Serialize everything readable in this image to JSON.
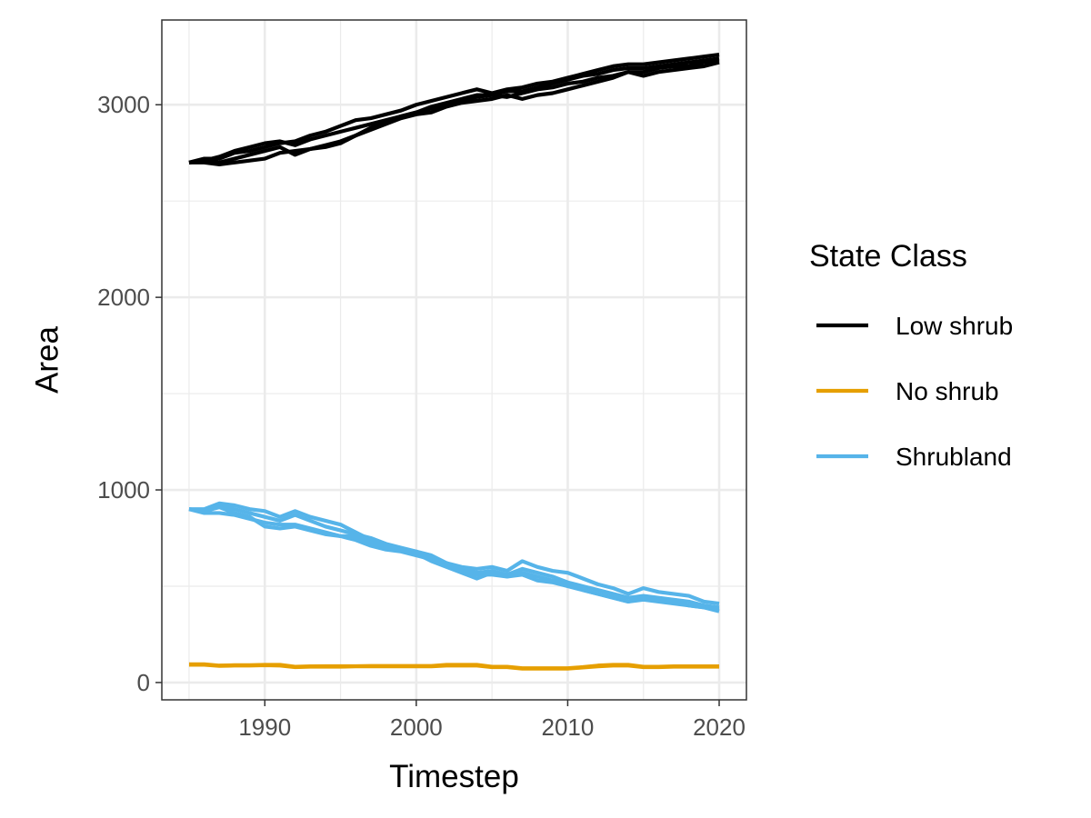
{
  "chart_data": {
    "type": "line",
    "title": "",
    "xlabel": "Timestep",
    "ylabel": "Area",
    "xlim": [
      1983.2,
      2021.8
    ],
    "ylim": [
      -90,
      3440
    ],
    "x_ticks": [
      1990,
      2000,
      2010,
      2020
    ],
    "y_ticks": [
      0,
      1000,
      2000,
      3000
    ],
    "grid": true,
    "legend_title": "State Class",
    "legend_position": "right",
    "x": [
      1985,
      1986,
      1987,
      1988,
      1989,
      1990,
      1991,
      1992,
      1993,
      1994,
      1995,
      1996,
      1997,
      1998,
      1999,
      2000,
      2001,
      2002,
      2003,
      2004,
      2005,
      2006,
      2007,
      2008,
      2009,
      2010,
      2011,
      2012,
      2013,
      2014,
      2015,
      2016,
      2017,
      2018,
      2019,
      2020
    ],
    "series": [
      {
        "name": "Low shrub",
        "state_class": "Low shrub",
        "color": "#000000",
        "values": [
          2700,
          2710,
          2730,
          2760,
          2780,
          2800,
          2810,
          2790,
          2820,
          2840,
          2860,
          2880,
          2900,
          2920,
          2940,
          2960,
          2990,
          3010,
          3030,
          3050,
          3050,
          3070,
          3070,
          3090,
          3110,
          3130,
          3150,
          3160,
          3180,
          3190,
          3190,
          3200,
          3210,
          3220,
          3230,
          3240
        ]
      },
      {
        "name": "Low shrub",
        "state_class": "Low shrub",
        "color": "#000000",
        "values": [
          2700,
          2700,
          2690,
          2700,
          2710,
          2720,
          2750,
          2760,
          2770,
          2790,
          2810,
          2840,
          2870,
          2900,
          2930,
          2950,
          2960,
          2990,
          3010,
          3020,
          3030,
          3050,
          3030,
          3050,
          3060,
          3080,
          3100,
          3120,
          3140,
          3170,
          3150,
          3170,
          3180,
          3190,
          3200,
          3220
        ]
      },
      {
        "name": "Low shrub",
        "state_class": "Low shrub",
        "color": "#000000",
        "values": [
          2700,
          2720,
          2720,
          2750,
          2760,
          2780,
          2800,
          2810,
          2840,
          2860,
          2890,
          2920,
          2930,
          2950,
          2970,
          3000,
          3020,
          3040,
          3060,
          3080,
          3060,
          3080,
          3090,
          3110,
          3120,
          3140,
          3160,
          3180,
          3200,
          3210,
          3210,
          3220,
          3230,
          3240,
          3250,
          3260
        ]
      },
      {
        "name": "Low shrub",
        "state_class": "Low shrub",
        "color": "#000000",
        "values": [
          2700,
          2710,
          2700,
          2720,
          2740,
          2760,
          2780,
          2740,
          2770,
          2780,
          2800,
          2840,
          2880,
          2910,
          2940,
          2960,
          2980,
          3000,
          3020,
          3040,
          3050,
          3040,
          3060,
          3080,
          3090,
          3110,
          3120,
          3140,
          3150,
          3170,
          3170,
          3190,
          3200,
          3200,
          3220,
          3230
        ]
      },
      {
        "name": "Shrubland",
        "state_class": "Shrubland",
        "color": "#56B4E9",
        "values": [
          900,
          890,
          920,
          900,
          880,
          860,
          840,
          870,
          840,
          810,
          790,
          770,
          750,
          720,
          700,
          680,
          650,
          620,
          590,
          570,
          580,
          560,
          590,
          570,
          550,
          520,
          500,
          480,
          460,
          440,
          450,
          440,
          430,
          420,
          400,
          390
        ]
      },
      {
        "name": "Shrubland",
        "state_class": "Shrubland",
        "color": "#56B4E9",
        "values": [
          900,
          880,
          880,
          870,
          850,
          830,
          820,
          820,
          800,
          780,
          760,
          740,
          710,
          690,
          680,
          660,
          640,
          620,
          600,
          590,
          600,
          580,
          630,
          600,
          580,
          570,
          540,
          510,
          490,
          460,
          490,
          470,
          460,
          450,
          420,
          410
        ]
      },
      {
        "name": "Shrubland",
        "state_class": "Shrubland",
        "color": "#56B4E9",
        "values": [
          900,
          900,
          930,
          920,
          900,
          890,
          860,
          890,
          860,
          840,
          820,
          780,
          740,
          710,
          690,
          680,
          660,
          620,
          580,
          560,
          560,
          550,
          570,
          550,
          530,
          510,
          480,
          460,
          440,
          420,
          440,
          430,
          420,
          400,
          390,
          370
        ]
      },
      {
        "name": "Shrubland",
        "state_class": "Shrubland",
        "color": "#56B4E9",
        "values": [
          900,
          890,
          910,
          880,
          860,
          810,
          800,
          810,
          790,
          770,
          760,
          760,
          720,
          700,
          690,
          670,
          630,
          600,
          570,
          540,
          570,
          550,
          560,
          530,
          520,
          500,
          480,
          460,
          440,
          420,
          430,
          420,
          410,
          400,
          390,
          380
        ]
      },
      {
        "name": "No shrub",
        "state_class": "No shrub",
        "color": "#E69F00",
        "values": [
          95,
          95,
          88,
          90,
          90,
          92,
          92,
          82,
          84,
          85,
          85,
          85,
          86,
          86,
          86,
          86,
          86,
          92,
          92,
          92,
          82,
          82,
          74,
          74,
          74,
          74,
          80,
          88,
          92,
          92,
          82,
          82,
          84,
          84,
          84,
          84
        ]
      },
      {
        "name": "No shrub",
        "state_class": "No shrub",
        "color": "#E69F00",
        "values": [
          92,
          92,
          86,
          88,
          88,
          90,
          88,
          80,
          82,
          82,
          82,
          84,
          84,
          84,
          84,
          84,
          84,
          88,
          88,
          88,
          80,
          80,
          72,
          72,
          72,
          72,
          78,
          84,
          88,
          88,
          80,
          80,
          82,
          82,
          82,
          82
        ]
      }
    ],
    "legend": [
      {
        "label": "Low shrub",
        "color": "#000000"
      },
      {
        "label": "No shrub",
        "color": "#E69F00"
      },
      {
        "label": "Shrubland",
        "color": "#56B4E9"
      }
    ]
  }
}
